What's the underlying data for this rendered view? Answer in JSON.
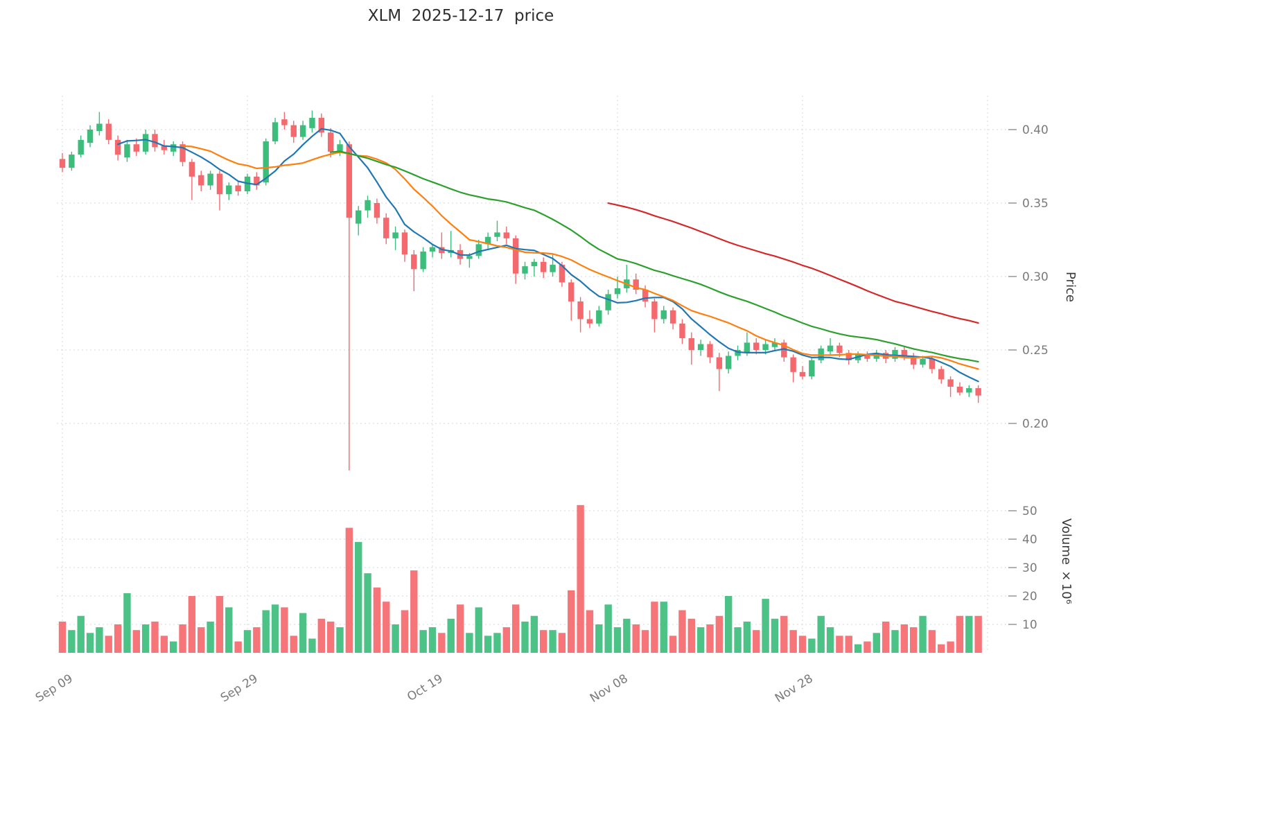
{
  "chart_data": {
    "type": "candlestick",
    "title": "XLM  2025-12-17  price",
    "ylabel": "Price",
    "y2label": "Volume ×10⁶",
    "x_axis": {
      "start_date": "2025-09-09",
      "end_date": "2025-12-17",
      "interval": "1d"
    },
    "price_ticks": [
      {
        "label": "0.40",
        "value": 0.4
      },
      {
        "label": "0.35",
        "value": 0.35
      },
      {
        "label": "0.30",
        "value": 0.3
      },
      {
        "label": "0.25",
        "value": 0.25
      },
      {
        "label": "0.20",
        "value": 0.2
      }
    ],
    "volume_ticks": [
      {
        "label": "50",
        "value": 50
      },
      {
        "label": "40",
        "value": 40
      },
      {
        "label": "30",
        "value": 30
      },
      {
        "label": "20",
        "value": 20
      },
      {
        "label": "10",
        "value": 10
      }
    ],
    "x_ticks": [
      {
        "label": "Sep 09",
        "index": 0
      },
      {
        "label": "Sep 29",
        "index": 20
      },
      {
        "label": "Oct 19",
        "index": 40
      },
      {
        "label": "Nov 08",
        "index": 60
      },
      {
        "label": "Nov 28",
        "index": 80
      }
    ],
    "grid_indices": [
      0,
      20,
      40,
      60,
      80,
      100
    ],
    "colors": {
      "up": "#3dbd7c",
      "down": "#f4696e",
      "ma_blue": "#1f77b4",
      "ma_orange": "#ff7f0e",
      "ma_green": "#2ca02c",
      "ma_red": "#d62728",
      "grid": "#d7d7d7",
      "tick_text": "#7a7a7a"
    },
    "moving_averages": [
      {
        "name": "MA7",
        "window": 7,
        "color": "#1f77b4"
      },
      {
        "name": "MA14",
        "window": 14,
        "color": "#ff7f0e"
      },
      {
        "name": "MA30",
        "window": 30,
        "color": "#2ca02c"
      },
      {
        "name": "MA60",
        "window": 60,
        "color": "#d62728"
      }
    ],
    "candles_schema": [
      "date",
      "open",
      "high",
      "low",
      "close",
      "volume_millions"
    ],
    "candles": [
      [
        "2025-09-09",
        0.38,
        0.384,
        0.371,
        0.374,
        11
      ],
      [
        "2025-09-10",
        0.374,
        0.385,
        0.372,
        0.383,
        8
      ],
      [
        "2025-09-11",
        0.383,
        0.396,
        0.381,
        0.393,
        13
      ],
      [
        "2025-09-12",
        0.391,
        0.403,
        0.388,
        0.4,
        7
      ],
      [
        "2025-09-13",
        0.399,
        0.412,
        0.396,
        0.404,
        9
      ],
      [
        "2025-09-14",
        0.404,
        0.407,
        0.39,
        0.393,
        6
      ],
      [
        "2025-09-15",
        0.393,
        0.396,
        0.379,
        0.383,
        10
      ],
      [
        "2025-09-16",
        0.381,
        0.393,
        0.378,
        0.39,
        21
      ],
      [
        "2025-09-17",
        0.39,
        0.394,
        0.382,
        0.385,
        8
      ],
      [
        "2025-09-18",
        0.385,
        0.4,
        0.383,
        0.397,
        10
      ],
      [
        "2025-09-19",
        0.397,
        0.4,
        0.385,
        0.388,
        11
      ],
      [
        "2025-09-20",
        0.389,
        0.393,
        0.383,
        0.386,
        6
      ],
      [
        "2025-09-21",
        0.385,
        0.392,
        0.382,
        0.39,
        4
      ],
      [
        "2025-09-22",
        0.39,
        0.392,
        0.375,
        0.378,
        10
      ],
      [
        "2025-09-23",
        0.378,
        0.38,
        0.352,
        0.368,
        20
      ],
      [
        "2025-09-24",
        0.369,
        0.372,
        0.358,
        0.362,
        9
      ],
      [
        "2025-09-25",
        0.362,
        0.372,
        0.359,
        0.37,
        11
      ],
      [
        "2025-09-26",
        0.37,
        0.372,
        0.345,
        0.356,
        20
      ],
      [
        "2025-09-27",
        0.356,
        0.364,
        0.352,
        0.362,
        16
      ],
      [
        "2025-09-28",
        0.362,
        0.365,
        0.355,
        0.358,
        4
      ],
      [
        "2025-09-29",
        0.358,
        0.37,
        0.356,
        0.368,
        8
      ],
      [
        "2025-09-30",
        0.368,
        0.371,
        0.359,
        0.362,
        9
      ],
      [
        "2025-10-01",
        0.364,
        0.394,
        0.362,
        0.392,
        15
      ],
      [
        "2025-10-02",
        0.392,
        0.408,
        0.39,
        0.405,
        17
      ],
      [
        "2025-10-03",
        0.407,
        0.412,
        0.4,
        0.403,
        16
      ],
      [
        "2025-10-04",
        0.403,
        0.406,
        0.391,
        0.395,
        6
      ],
      [
        "2025-10-05",
        0.395,
        0.406,
        0.393,
        0.403,
        14
      ],
      [
        "2025-10-06",
        0.401,
        0.413,
        0.398,
        0.408,
        5
      ],
      [
        "2025-10-07",
        0.408,
        0.411,
        0.395,
        0.398,
        12
      ],
      [
        "2025-10-08",
        0.398,
        0.401,
        0.381,
        0.385,
        11
      ],
      [
        "2025-10-09",
        0.385,
        0.393,
        0.382,
        0.39,
        9
      ],
      [
        "2025-10-10",
        0.39,
        0.392,
        0.168,
        0.34,
        44
      ],
      [
        "2025-10-11",
        0.336,
        0.348,
        0.328,
        0.345,
        39
      ],
      [
        "2025-10-12",
        0.345,
        0.355,
        0.34,
        0.352,
        28
      ],
      [
        "2025-10-13",
        0.35,
        0.353,
        0.336,
        0.34,
        23
      ],
      [
        "2025-10-14",
        0.34,
        0.343,
        0.322,
        0.326,
        18
      ],
      [
        "2025-10-15",
        0.326,
        0.334,
        0.318,
        0.33,
        10
      ],
      [
        "2025-10-16",
        0.33,
        0.332,
        0.31,
        0.315,
        15
      ],
      [
        "2025-10-17",
        0.315,
        0.318,
        0.29,
        0.305,
        29
      ],
      [
        "2025-10-18",
        0.305,
        0.32,
        0.303,
        0.317,
        8
      ],
      [
        "2025-10-19",
        0.317,
        0.322,
        0.313,
        0.32,
        9
      ],
      [
        "2025-10-20",
        0.32,
        0.33,
        0.312,
        0.316,
        7
      ],
      [
        "2025-10-21",
        0.316,
        0.331,
        0.313,
        0.318,
        12
      ],
      [
        "2025-10-22",
        0.318,
        0.322,
        0.308,
        0.312,
        17
      ],
      [
        "2025-10-23",
        0.312,
        0.316,
        0.306,
        0.314,
        7
      ],
      [
        "2025-10-24",
        0.314,
        0.325,
        0.312,
        0.322,
        16
      ],
      [
        "2025-10-25",
        0.322,
        0.33,
        0.319,
        0.327,
        6
      ],
      [
        "2025-10-26",
        0.327,
        0.338,
        0.324,
        0.33,
        7
      ],
      [
        "2025-10-27",
        0.33,
        0.334,
        0.322,
        0.326,
        9
      ],
      [
        "2025-10-28",
        0.326,
        0.328,
        0.295,
        0.302,
        17
      ],
      [
        "2025-10-29",
        0.302,
        0.31,
        0.298,
        0.307,
        11
      ],
      [
        "2025-10-30",
        0.307,
        0.312,
        0.3,
        0.31,
        13
      ],
      [
        "2025-10-31",
        0.31,
        0.313,
        0.299,
        0.303,
        8
      ],
      [
        "2025-11-01",
        0.303,
        0.315,
        0.3,
        0.308,
        8
      ],
      [
        "2025-11-02",
        0.308,
        0.31,
        0.293,
        0.296,
        7
      ],
      [
        "2025-11-03",
        0.296,
        0.298,
        0.27,
        0.283,
        22
      ],
      [
        "2025-11-04",
        0.283,
        0.286,
        0.262,
        0.271,
        52
      ],
      [
        "2025-11-05",
        0.271,
        0.277,
        0.265,
        0.268,
        15
      ],
      [
        "2025-11-06",
        0.268,
        0.28,
        0.266,
        0.277,
        10
      ],
      [
        "2025-11-07",
        0.277,
        0.291,
        0.274,
        0.288,
        17
      ],
      [
        "2025-11-08",
        0.288,
        0.3,
        0.285,
        0.292,
        9
      ],
      [
        "2025-11-09",
        0.292,
        0.308,
        0.289,
        0.298,
        12
      ],
      [
        "2025-11-10",
        0.298,
        0.302,
        0.288,
        0.291,
        10
      ],
      [
        "2025-11-11",
        0.291,
        0.294,
        0.279,
        0.283,
        8
      ],
      [
        "2025-11-12",
        0.283,
        0.285,
        0.262,
        0.271,
        18
      ],
      [
        "2025-11-13",
        0.271,
        0.28,
        0.268,
        0.277,
        18
      ],
      [
        "2025-11-14",
        0.277,
        0.279,
        0.264,
        0.268,
        6
      ],
      [
        "2025-11-15",
        0.268,
        0.271,
        0.254,
        0.258,
        15
      ],
      [
        "2025-11-16",
        0.258,
        0.262,
        0.24,
        0.25,
        12
      ],
      [
        "2025-11-17",
        0.25,
        0.257,
        0.246,
        0.254,
        9
      ],
      [
        "2025-11-18",
        0.254,
        0.256,
        0.241,
        0.245,
        10
      ],
      [
        "2025-11-19",
        0.245,
        0.248,
        0.222,
        0.237,
        13
      ],
      [
        "2025-11-20",
        0.237,
        0.249,
        0.234,
        0.246,
        20
      ],
      [
        "2025-11-21",
        0.246,
        0.253,
        0.243,
        0.25,
        9
      ],
      [
        "2025-11-22",
        0.248,
        0.262,
        0.246,
        0.255,
        11
      ],
      [
        "2025-11-23",
        0.255,
        0.258,
        0.247,
        0.25,
        8
      ],
      [
        "2025-11-24",
        0.25,
        0.257,
        0.247,
        0.254,
        19
      ],
      [
        "2025-11-25",
        0.252,
        0.258,
        0.25,
        0.255,
        12
      ],
      [
        "2025-11-26",
        0.255,
        0.257,
        0.242,
        0.245,
        13
      ],
      [
        "2025-11-27",
        0.245,
        0.247,
        0.228,
        0.235,
        8
      ],
      [
        "2025-11-28",
        0.235,
        0.239,
        0.23,
        0.232,
        6
      ],
      [
        "2025-11-29",
        0.232,
        0.245,
        0.23,
        0.243,
        5
      ],
      [
        "2025-11-30",
        0.243,
        0.253,
        0.241,
        0.251,
        13
      ],
      [
        "2025-12-01",
        0.249,
        0.258,
        0.247,
        0.253,
        9
      ],
      [
        "2025-12-02",
        0.253,
        0.255,
        0.245,
        0.248,
        6
      ],
      [
        "2025-12-03",
        0.248,
        0.25,
        0.24,
        0.243,
        6
      ],
      [
        "2025-12-04",
        0.243,
        0.249,
        0.241,
        0.247,
        3
      ],
      [
        "2025-12-05",
        0.247,
        0.249,
        0.242,
        0.244,
        4
      ],
      [
        "2025-12-06",
        0.244,
        0.25,
        0.242,
        0.248,
        7
      ],
      [
        "2025-12-07",
        0.248,
        0.25,
        0.241,
        0.244,
        11
      ],
      [
        "2025-12-08",
        0.244,
        0.252,
        0.242,
        0.25,
        8
      ],
      [
        "2025-12-09",
        0.25,
        0.252,
        0.243,
        0.246,
        10
      ],
      [
        "2025-12-10",
        0.246,
        0.248,
        0.237,
        0.24,
        9
      ],
      [
        "2025-12-11",
        0.24,
        0.246,
        0.238,
        0.244,
        13
      ],
      [
        "2025-12-12",
        0.244,
        0.246,
        0.234,
        0.237,
        8
      ],
      [
        "2025-12-13",
        0.237,
        0.239,
        0.227,
        0.23,
        3
      ],
      [
        "2025-12-14",
        0.23,
        0.232,
        0.218,
        0.225,
        4
      ],
      [
        "2025-12-15",
        0.225,
        0.228,
        0.219,
        0.221,
        13
      ],
      [
        "2025-12-16",
        0.221,
        0.226,
        0.218,
        0.224,
        13
      ],
      [
        "2025-12-17",
        0.224,
        0.226,
        0.214,
        0.219,
        13
      ]
    ]
  }
}
